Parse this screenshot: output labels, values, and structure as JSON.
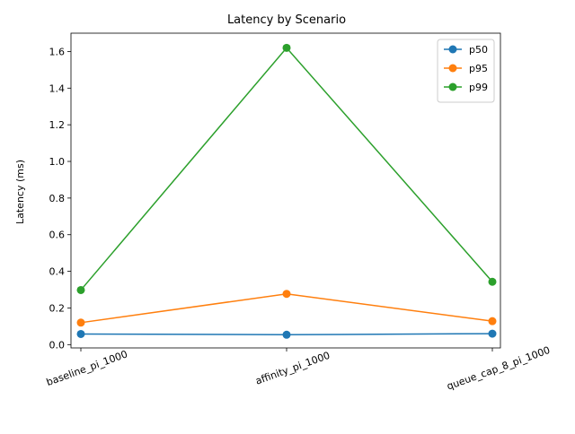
{
  "chart_data": {
    "type": "line",
    "title": "Latency by Scenario",
    "xlabel": "",
    "ylabel": "Latency (ms)",
    "categories": [
      "baseline_pi_1000",
      "affinity_pi_1000",
      "queue_cap_8_pi_1000"
    ],
    "ylim": [
      -0.018,
      1.7
    ],
    "yticks": [
      "0.0",
      "0.2",
      "0.4",
      "0.6",
      "0.8",
      "1.0",
      "1.2",
      "1.4",
      "1.6"
    ],
    "grid": false,
    "legend": "top-right",
    "series": [
      {
        "name": "p50",
        "color": "#1f77b4",
        "values": [
          0.058,
          0.054,
          0.06
        ]
      },
      {
        "name": "p95",
        "color": "#ff7f0e",
        "values": [
          0.12,
          0.277,
          0.128
        ]
      },
      {
        "name": "p99",
        "color": "#2ca02c",
        "values": [
          0.298,
          1.62,
          0.343
        ]
      }
    ]
  }
}
